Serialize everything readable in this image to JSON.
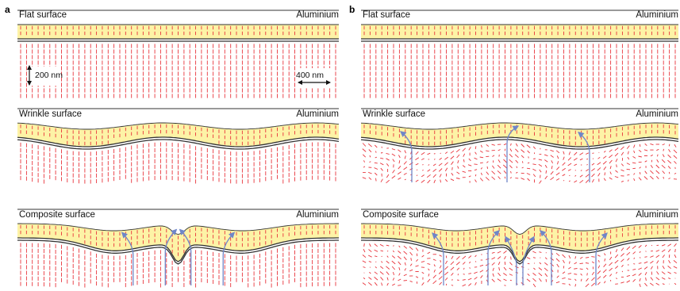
{
  "panels": [
    {
      "letter": "a",
      "rows": [
        {
          "label": "Flat surface",
          "material": "Aluminium",
          "profile": "flat"
        },
        {
          "label": "Wrinkle surface",
          "material": "Aluminium",
          "profile": "wrinkle"
        },
        {
          "label": "Composite surface",
          "material": "Aluminium",
          "profile": "composite"
        }
      ],
      "scale_bars": {
        "vertical": "200 nm",
        "horizontal": "400 nm"
      }
    },
    {
      "letter": "b",
      "rows": [
        {
          "label": "Flat surface",
          "material": "Aluminium",
          "profile": "flat"
        },
        {
          "label": "Wrinkle surface",
          "material": "Aluminium",
          "profile": "wrinkle"
        },
        {
          "label": "Composite surface",
          "material": "Aluminium",
          "profile": "composite"
        }
      ]
    }
  ],
  "colors": {
    "film": "#fdf3a6",
    "arrow": "#e8333b",
    "streamline": "#6f86c8",
    "line": "#333333"
  }
}
